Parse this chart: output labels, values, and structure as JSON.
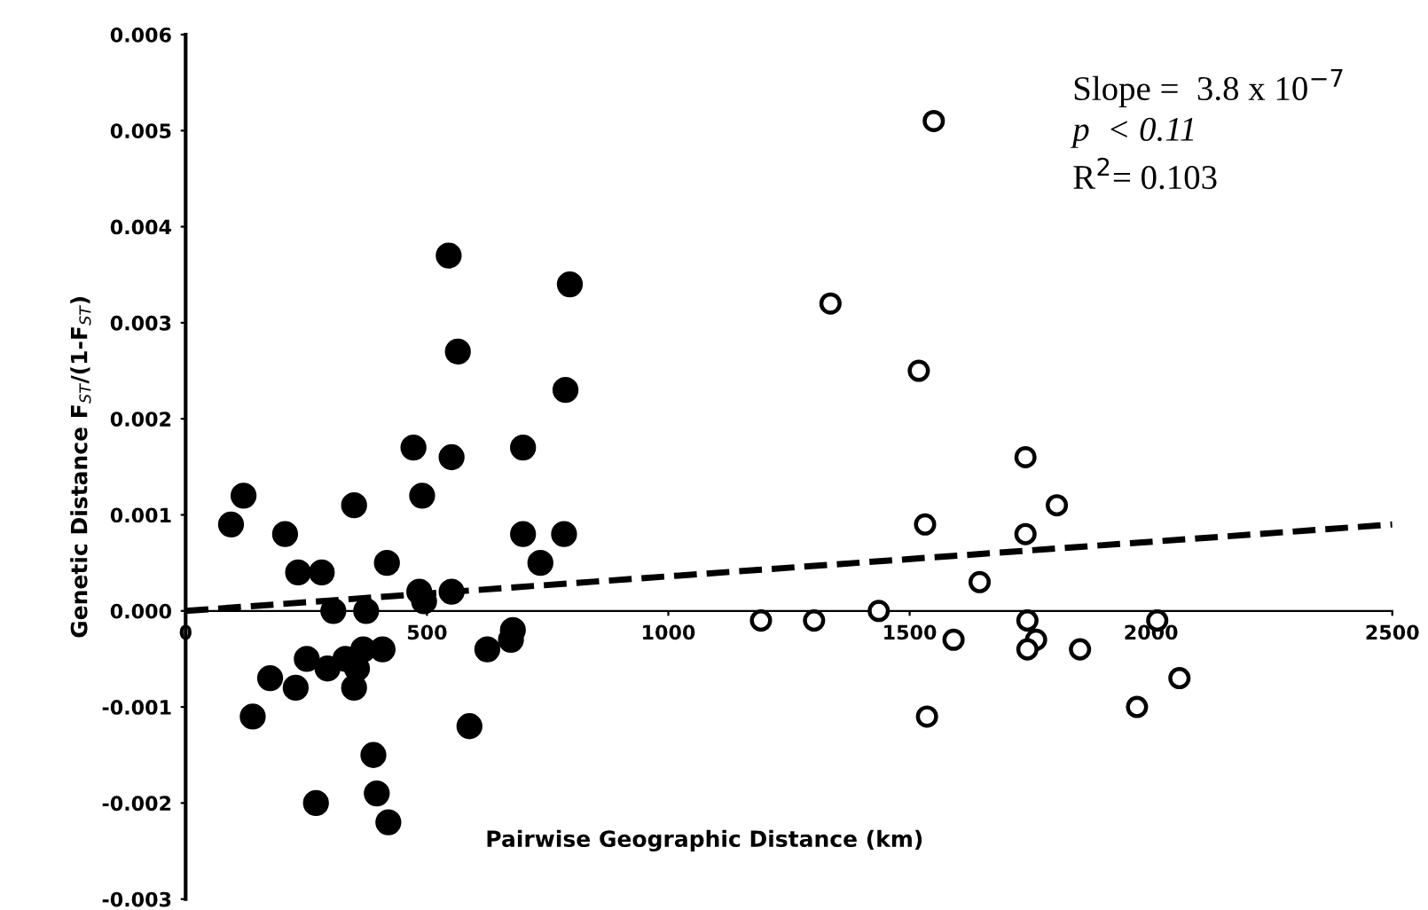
{
  "chart_data": {
    "type": "scatter",
    "xlabel": "Pairwise Geographic Distance (km)",
    "ylabel": "Genetic Distance F$_{ST}$/(1-F$_{ST}$)",
    "xlim": [
      0,
      2500
    ],
    "ylim": [
      -0.003,
      0.006
    ],
    "xticks": [
      0,
      500,
      1000,
      1500,
      2000,
      2500
    ],
    "yticks": [
      {
        "value": -0.003,
        "label": "-0.003"
      },
      {
        "value": -0.002,
        "label": "-0.002"
      },
      {
        "value": -0.001,
        "label": "-0.001"
      },
      {
        "value": 0,
        "label": "0.000"
      },
      {
        "value": 0.001,
        "label": "0.001"
      },
      {
        "value": 0.002,
        "label": "0.002"
      },
      {
        "value": 0.003,
        "label": "0.003"
      },
      {
        "value": 0.004,
        "label": "0.004"
      },
      {
        "value": 0.005,
        "label": "0.005"
      },
      {
        "value": 0.006,
        "label": "0.006"
      }
    ],
    "grid": false,
    "legend": false,
    "marker": "circle",
    "series": [
      {
        "color": "#000000",
        "x": [
          94,
          120,
          206,
          139,
          175,
          228,
          233,
          282,
          251,
          270,
          306,
          349,
          294,
          331,
          368,
          349,
          355,
          374,
          408,
          417,
          389,
          396,
          420,
          472,
          551,
          490,
          484,
          494,
          551,
          588,
          625,
          678,
          674,
          699,
          699,
          784,
          735,
          545,
          796,
          564,
          787
        ],
        "values": [
          0.0009,
          0.0012,
          0.0008,
          -0.0011,
          -0.0007,
          -0.0008,
          0.0004,
          0.0004,
          -0.0005,
          -0.002,
          0.0,
          0.0011,
          -0.0006,
          -0.0005,
          -0.0004,
          -0.0008,
          -0.0006,
          0.0,
          -0.0004,
          0.0005,
          -0.0015,
          -0.0019,
          -0.0022,
          0.0017,
          0.0016,
          0.0012,
          0.0002,
          0.0001,
          0.0002,
          -0.0012,
          -0.0004,
          -0.0002,
          -0.0003,
          0.0017,
          0.0008,
          0.0008,
          0.0005,
          0.0037,
          0.0034,
          0.0027,
          0.0023
        ]
      },
      {
        "color": "#ffffff",
        "x": [
          1550,
          1336,
          1519,
          1740,
          1805,
          1532,
          1740,
          1645,
          1192,
          1302,
          1436,
          1591,
          1744,
          1762,
          1744,
          1853,
          2013,
          2059,
          1971,
          1536
        ],
        "values": [
          0.0051,
          0.0032,
          0.0025,
          0.0016,
          0.0011,
          0.0009,
          0.0008,
          0.0003,
          -0.0001,
          -0.0001,
          0.0,
          -0.0003,
          -0.0001,
          -0.0003,
          -0.0004,
          -0.0004,
          -0.0001,
          -0.0007,
          -0.001,
          -0.0011
        ]
      },
      {
        "type": "line",
        "color": "#000000",
        "line_style": "dashed",
        "marker": "none",
        "x": [
          0,
          2500
        ],
        "values": [
          0.0,
          0.0009
        ]
      }
    ],
    "annotations": [
      "Slope =  3.8 x 10$^{−7}$",
      "p  < 0.11",
      "R$^{2}$= 0.103"
    ]
  }
}
